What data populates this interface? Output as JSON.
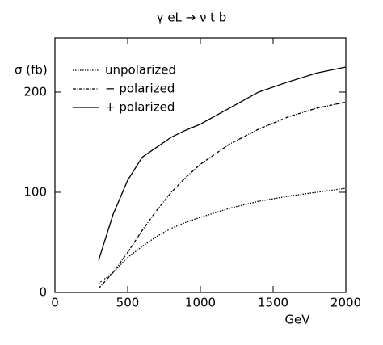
{
  "chart_data": {
    "type": "line",
    "title": "γ eL → ν t̄ b",
    "y_label": "σ (fb)",
    "x_label": "GeV",
    "x": [
      300,
      400,
      500,
      600,
      700,
      800,
      900,
      1000,
      1200,
      1400,
      1600,
      1800,
      2000
    ],
    "series": [
      {
        "name": "unpolarized",
        "color": "#000000",
        "dash": "dotted",
        "values": [
          9,
          20,
          35,
          46,
          56,
          64,
          70,
          75,
          84,
          91,
          96,
          100,
          104
        ]
      },
      {
        "name": "− polarized",
        "color": "#000000",
        "dash": "dashdot",
        "values": [
          4,
          20,
          40,
          62,
          82,
          100,
          115,
          128,
          148,
          163,
          175,
          184,
          190
        ]
      },
      {
        "name": "+ polarized",
        "color": "#000000",
        "dash": "solid",
        "values": [
          32,
          78,
          112,
          135,
          145,
          155,
          162,
          168,
          184,
          200,
          210,
          219,
          225
        ]
      }
    ],
    "xlim": [
      0,
      2000
    ],
    "xticks": [
      0,
      500,
      1000,
      1500,
      2000
    ],
    "ylim": [
      0,
      254
    ],
    "yticks": [
      0,
      100,
      200
    ],
    "legend": "top-left",
    "grid": false
  }
}
